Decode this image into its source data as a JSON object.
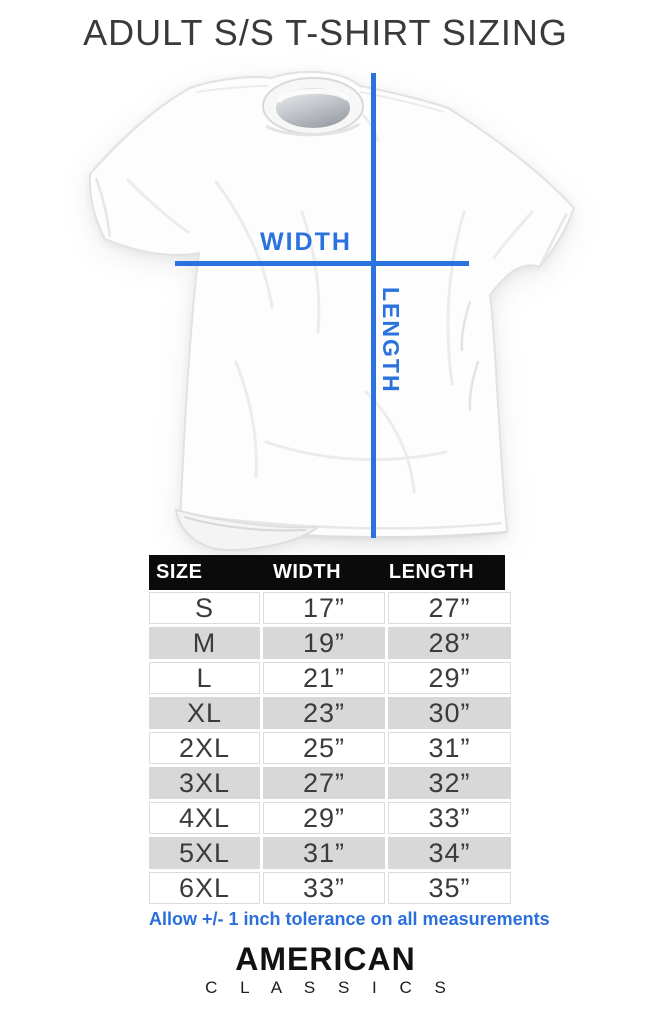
{
  "title": "ADULT S/S T-SHIRT SIZING",
  "diagram": {
    "width_label": "WIDTH",
    "length_label": "LENGTH"
  },
  "table": {
    "columns": [
      "SIZE",
      "WIDTH",
      "LENGTH"
    ],
    "rows": [
      {
        "size": "S",
        "width": "17”",
        "length": "27”"
      },
      {
        "size": "M",
        "width": "19”",
        "length": "28”"
      },
      {
        "size": "L",
        "width": "21”",
        "length": "29”"
      },
      {
        "size": "XL",
        "width": "23”",
        "length": "30”"
      },
      {
        "size": "2XL",
        "width": "25”",
        "length": "31”"
      },
      {
        "size": "3XL",
        "width": "27”",
        "length": "32”"
      },
      {
        "size": "4XL",
        "width": "29”",
        "length": "33”"
      },
      {
        "size": "5XL",
        "width": "31”",
        "length": "34”"
      },
      {
        "size": "6XL",
        "width": "33”",
        "length": "35”"
      }
    ]
  },
  "tolerance_note": "Allow +/- 1 inch tolerance on all measurements",
  "brand": {
    "line1": "AMERICAN",
    "line2": "C L A S S I C S"
  },
  "colors": {
    "accent_blue": "#2a72de",
    "header_bg": "#0b0b0b",
    "row_alt_gray": "#d8d8d8",
    "title_text": "#3a3a3a"
  }
}
